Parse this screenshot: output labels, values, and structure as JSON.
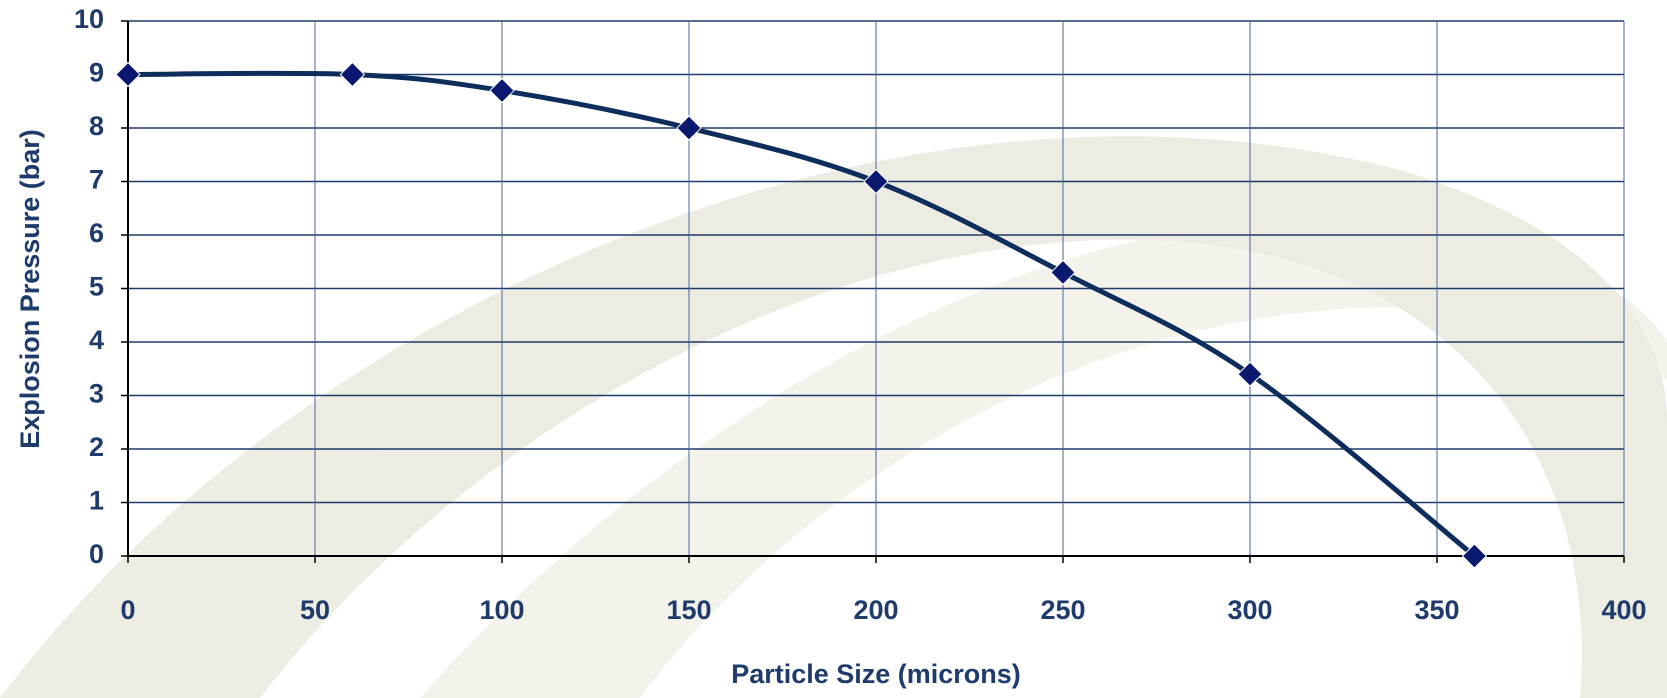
{
  "chart_data": {
    "type": "line",
    "x_label": "Particle Size (microns)",
    "y_label": "Explosion Pressure (bar)",
    "x": [
      0,
      60,
      100,
      150,
      200,
      250,
      300,
      360
    ],
    "series": [
      {
        "color": "#0d2d5c",
        "marker_color": "#0a1870",
        "values": [
          9,
          9,
          8.7,
          8,
          7,
          5.3,
          3.4,
          0
        ]
      }
    ],
    "xlim": [
      0,
      400
    ],
    "xticks": [
      0,
      50,
      100,
      150,
      200,
      250,
      300,
      350,
      400
    ],
    "ylim": [
      0,
      10
    ],
    "yticks": [
      0,
      1,
      2,
      3,
      4,
      5,
      6,
      7,
      8,
      9,
      10
    ],
    "grid": true,
    "smooth": true
  }
}
